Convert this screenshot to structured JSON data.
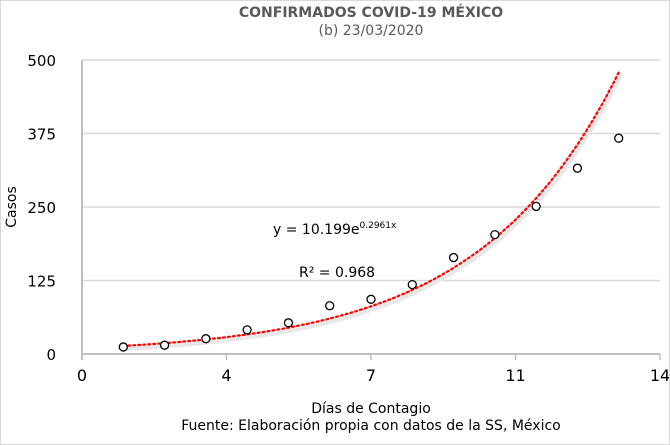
{
  "chart_data": {
    "type": "scatter",
    "title": "CONFIRMADOS COVID-19 MÉXICO",
    "subtitle": "(b) 23/03/2020",
    "xlabel": "Días de Contagio",
    "ylabel": "Casos",
    "source": "Fuente: Elaboración propia con datos de la SS, México",
    "xlim": [
      0,
      14
    ],
    "ylim": [
      0,
      500
    ],
    "x_ticks": [
      0,
      3.5,
      7,
      10.5,
      14
    ],
    "x_tick_labels": [
      "0",
      "4",
      "7",
      "11",
      "14"
    ],
    "y_ticks": [
      0,
      125,
      250,
      375,
      500
    ],
    "y_tick_labels": [
      "0",
      "125",
      "250",
      "375",
      "500"
    ],
    "grid": "horizontal",
    "x": [
      1,
      2,
      3,
      4,
      5,
      6,
      7,
      8,
      9,
      10,
      11,
      12,
      13
    ],
    "y": [
      12,
      15,
      26,
      41,
      53,
      82,
      93,
      118,
      164,
      203,
      251,
      316,
      367
    ],
    "trendline": {
      "type": "exponential",
      "a": 10.199,
      "b": 0.2961,
      "x_range": [
        1,
        13
      ],
      "color": "#ff0000",
      "style": "dotted"
    },
    "equation": {
      "base": "y = 10.199e",
      "exponent": "0.2961x"
    },
    "r_squared": "R² = 0.968",
    "colors": {
      "marker": "#000000",
      "trend": "#ff0000",
      "grid": "#d9d9d9",
      "text": "#595959"
    }
  }
}
